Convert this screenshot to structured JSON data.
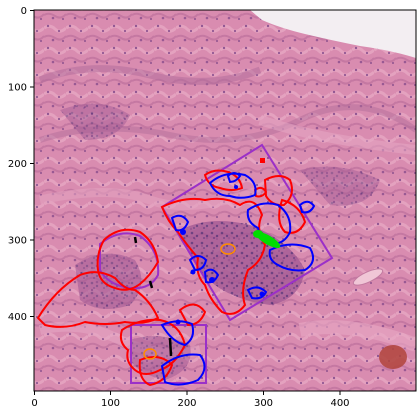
{
  "axes": {
    "x_ticks": [
      "0",
      "100",
      "200",
      "300",
      "400"
    ],
    "y_ticks": [
      "0",
      "100",
      "200",
      "300",
      "400"
    ]
  },
  "colors": {
    "tissue_base": "#dc8fb1",
    "tissue_dark": "#a85a8e",
    "tissue_nuclei": "#7a3f86",
    "background": "#f1eef2",
    "annotation_red": "#ff0000",
    "annotation_blue": "#0000ff",
    "annotation_purple": "#9b30c8",
    "annotation_green": "#00dd00",
    "annotation_orange": "#ff8c00",
    "annotation_black": "#000000"
  },
  "annotations": {
    "region_colors": [
      "red",
      "blue",
      "purple",
      "green",
      "orange",
      "black"
    ]
  }
}
